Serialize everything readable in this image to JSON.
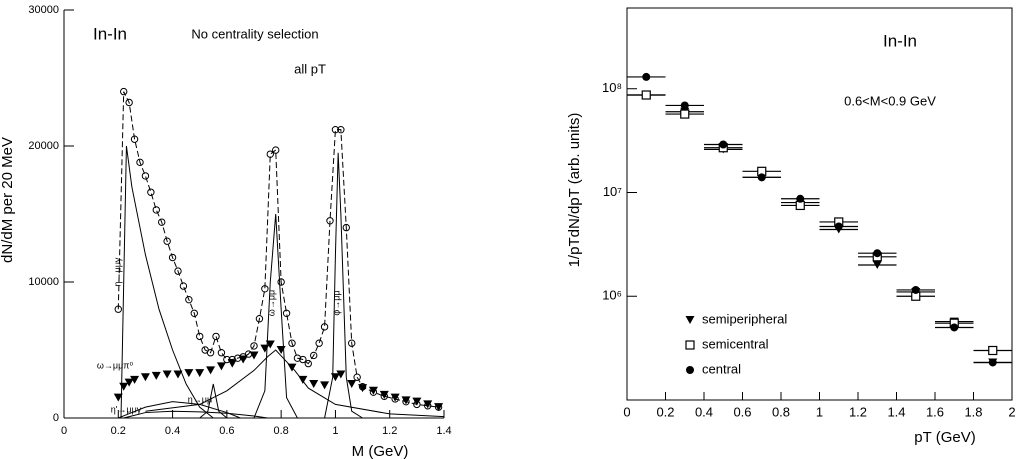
{
  "chart_data": [
    {
      "type": "line",
      "frame": "axes",
      "ylabel": "dN/dM per 20 MeV",
      "xlabel": "M (GeV)",
      "annotations": [
        "In-In",
        "No centrality selection",
        "all pT"
      ],
      "xlim": [
        0,
        1.4
      ],
      "xticks": [
        0,
        0.2,
        0.4,
        0.6,
        0.8,
        1,
        1.2,
        1.4
      ],
      "ylim": [
        0,
        30000
      ],
      "yticks": [
        0,
        10000,
        20000,
        30000
      ],
      "series": [
        {
          "marker": "circle-open",
          "dash": true,
          "color": "#000000",
          "x": [
            0.2,
            0.22,
            0.24,
            0.26,
            0.28,
            0.3,
            0.32,
            0.34,
            0.36,
            0.38,
            0.4,
            0.42,
            0.44,
            0.46,
            0.48,
            0.5,
            0.52,
            0.54,
            0.56,
            0.58,
            0.6,
            0.62,
            0.64,
            0.66,
            0.68,
            0.7,
            0.72,
            0.74,
            0.76,
            0.78,
            0.8,
            0.82,
            0.84,
            0.86,
            0.88,
            0.9,
            0.92,
            0.94,
            0.96,
            0.98,
            1,
            1.02,
            1.04,
            1.06,
            1.08,
            1.1,
            1.14,
            1.18,
            1.22,
            1.26,
            1.3,
            1.34,
            1.38
          ],
          "values": [
            8000,
            24000,
            23200,
            20500,
            18800,
            17800,
            16600,
            15300,
            14400,
            13000,
            11800,
            10800,
            9700,
            8700,
            7700,
            6000,
            5000,
            4800,
            6000,
            4800,
            4300,
            4300,
            4400,
            4500,
            4700,
            5300,
            7300,
            9500,
            19400,
            19700,
            10000,
            7700,
            5500,
            4400,
            4300,
            4000,
            4600,
            5500,
            6700,
            14500,
            21200,
            21200,
            14000,
            5500,
            3000,
            2300,
            1900,
            1600,
            1400,
            1200,
            1000,
            900,
            800
          ]
        },
        {
          "marker": "triangle-down",
          "color": "#000000",
          "x": [
            0.2,
            0.22,
            0.24,
            0.26,
            0.3,
            0.34,
            0.38,
            0.42,
            0.46,
            0.5,
            0.54,
            0.58,
            0.62,
            0.66,
            0.7,
            0.74,
            0.76,
            0.8,
            0.84,
            0.88,
            0.92,
            0.96,
            1,
            1.02,
            1.06,
            1.1,
            1.14,
            1.18,
            1.22,
            1.26,
            1.3,
            1.34,
            1.38
          ],
          "values": [
            1500,
            2300,
            2600,
            2800,
            3000,
            3100,
            3200,
            3200,
            3300,
            3300,
            3500,
            3800,
            4000,
            4300,
            4600,
            5100,
            5400,
            5000,
            3700,
            2800,
            2500,
            2400,
            3000,
            3200,
            2500,
            2200,
            2000,
            1700,
            1500,
            1300,
            1200,
            1000,
            800
          ]
        },
        {
          "name": "η→μμγ",
          "color": "#000000",
          "x": [
            0.21,
            0.22,
            0.23,
            0.25,
            0.3,
            0.35,
            0.4,
            0.45,
            0.5,
            0.55
          ],
          "values": [
            0,
            10000,
            20000,
            17000,
            12000,
            8000,
            5000,
            2500,
            800,
            0
          ]
        },
        {
          "name": "ω→μμπ⁰",
          "color": "#000000",
          "x": [
            0.2,
            0.3,
            0.4,
            0.5,
            0.6,
            0.65
          ],
          "values": [
            0,
            800,
            1200,
            1000,
            400,
            0
          ]
        },
        {
          "name": "η→μμ",
          "color": "#000000",
          "x": [
            0.5,
            0.53,
            0.55,
            0.57,
            0.6
          ],
          "values": [
            0,
            500,
            2500,
            500,
            0
          ]
        },
        {
          "name": "ω→μμ",
          "color": "#000000",
          "x": [
            0.7,
            0.74,
            0.76,
            0.78,
            0.8,
            0.82,
            0.86
          ],
          "values": [
            0,
            2000,
            10000,
            15000,
            8000,
            1500,
            0
          ]
        },
        {
          "name": "φ→μμ",
          "color": "#000000",
          "x": [
            0.96,
            0.99,
            1,
            1.01,
            1.02,
            1.04,
            1.06,
            1.1
          ],
          "values": [
            0,
            3000,
            12000,
            19500,
            15000,
            3000,
            500,
            0
          ]
        },
        {
          "color": "#000000",
          "x": [
            0.3,
            0.5,
            0.6,
            0.7,
            0.75,
            0.78,
            0.85,
            0.9,
            1,
            1.2,
            1.4
          ],
          "values": [
            500,
            1000,
            2000,
            3500,
            4500,
            5000,
            3500,
            2200,
            1000,
            300,
            100
          ]
        },
        {
          "name": "η'→μμγ",
          "color": "#000000",
          "x": [
            0.22,
            0.3,
            0.4,
            0.5,
            0.6,
            0.7,
            0.75
          ],
          "values": [
            0,
            400,
            500,
            450,
            350,
            150,
            0
          ]
        }
      ]
    },
    {
      "type": "scatter",
      "frame": "box",
      "log_y": true,
      "ylabel": "1/pTdN/dpT (arb. units)",
      "xlabel": "pT (GeV)",
      "annotations": [
        "In-In",
        "0.6<M<0.9 GeV"
      ],
      "xlim": [
        0,
        2
      ],
      "xticks": [
        0,
        0.2,
        0.4,
        0.6,
        0.8,
        1,
        1.2,
        1.4,
        1.6,
        1.8,
        2
      ],
      "ylim": [
        100000,
        600000000
      ],
      "yticks": [
        {
          "value": 1000000,
          "label": "10⁶"
        },
        {
          "value": 10000000,
          "label": "10⁷"
        },
        {
          "value": 100000000,
          "label": "10⁸"
        }
      ],
      "xerr": 0.1,
      "x": [
        0.1,
        0.3,
        0.5,
        0.7,
        0.9,
        1.1,
        1.3,
        1.5,
        1.7,
        1.9
      ],
      "series": [
        {
          "name": "semiperipheral",
          "marker": "triangle-down",
          "color": "#000000",
          "values": [
            87000000,
            60000000,
            26000000,
            14000000,
            8000000,
            4400000,
            2000000,
            1100000,
            570000,
            230000
          ]
        },
        {
          "name": "semicentral",
          "marker": "square-open",
          "color": "#000000",
          "values": [
            87000000,
            57000000,
            27000000,
            16000000,
            7500000,
            5200000,
            2400000,
            1000000,
            550000,
            300000
          ]
        },
        {
          "name": "central",
          "marker": "circle",
          "color": "#000000",
          "values": [
            130000000,
            69000000,
            29000000,
            14000000,
            8700000,
            4700000,
            2600000,
            1150000,
            500000,
            230000
          ]
        }
      ]
    }
  ]
}
